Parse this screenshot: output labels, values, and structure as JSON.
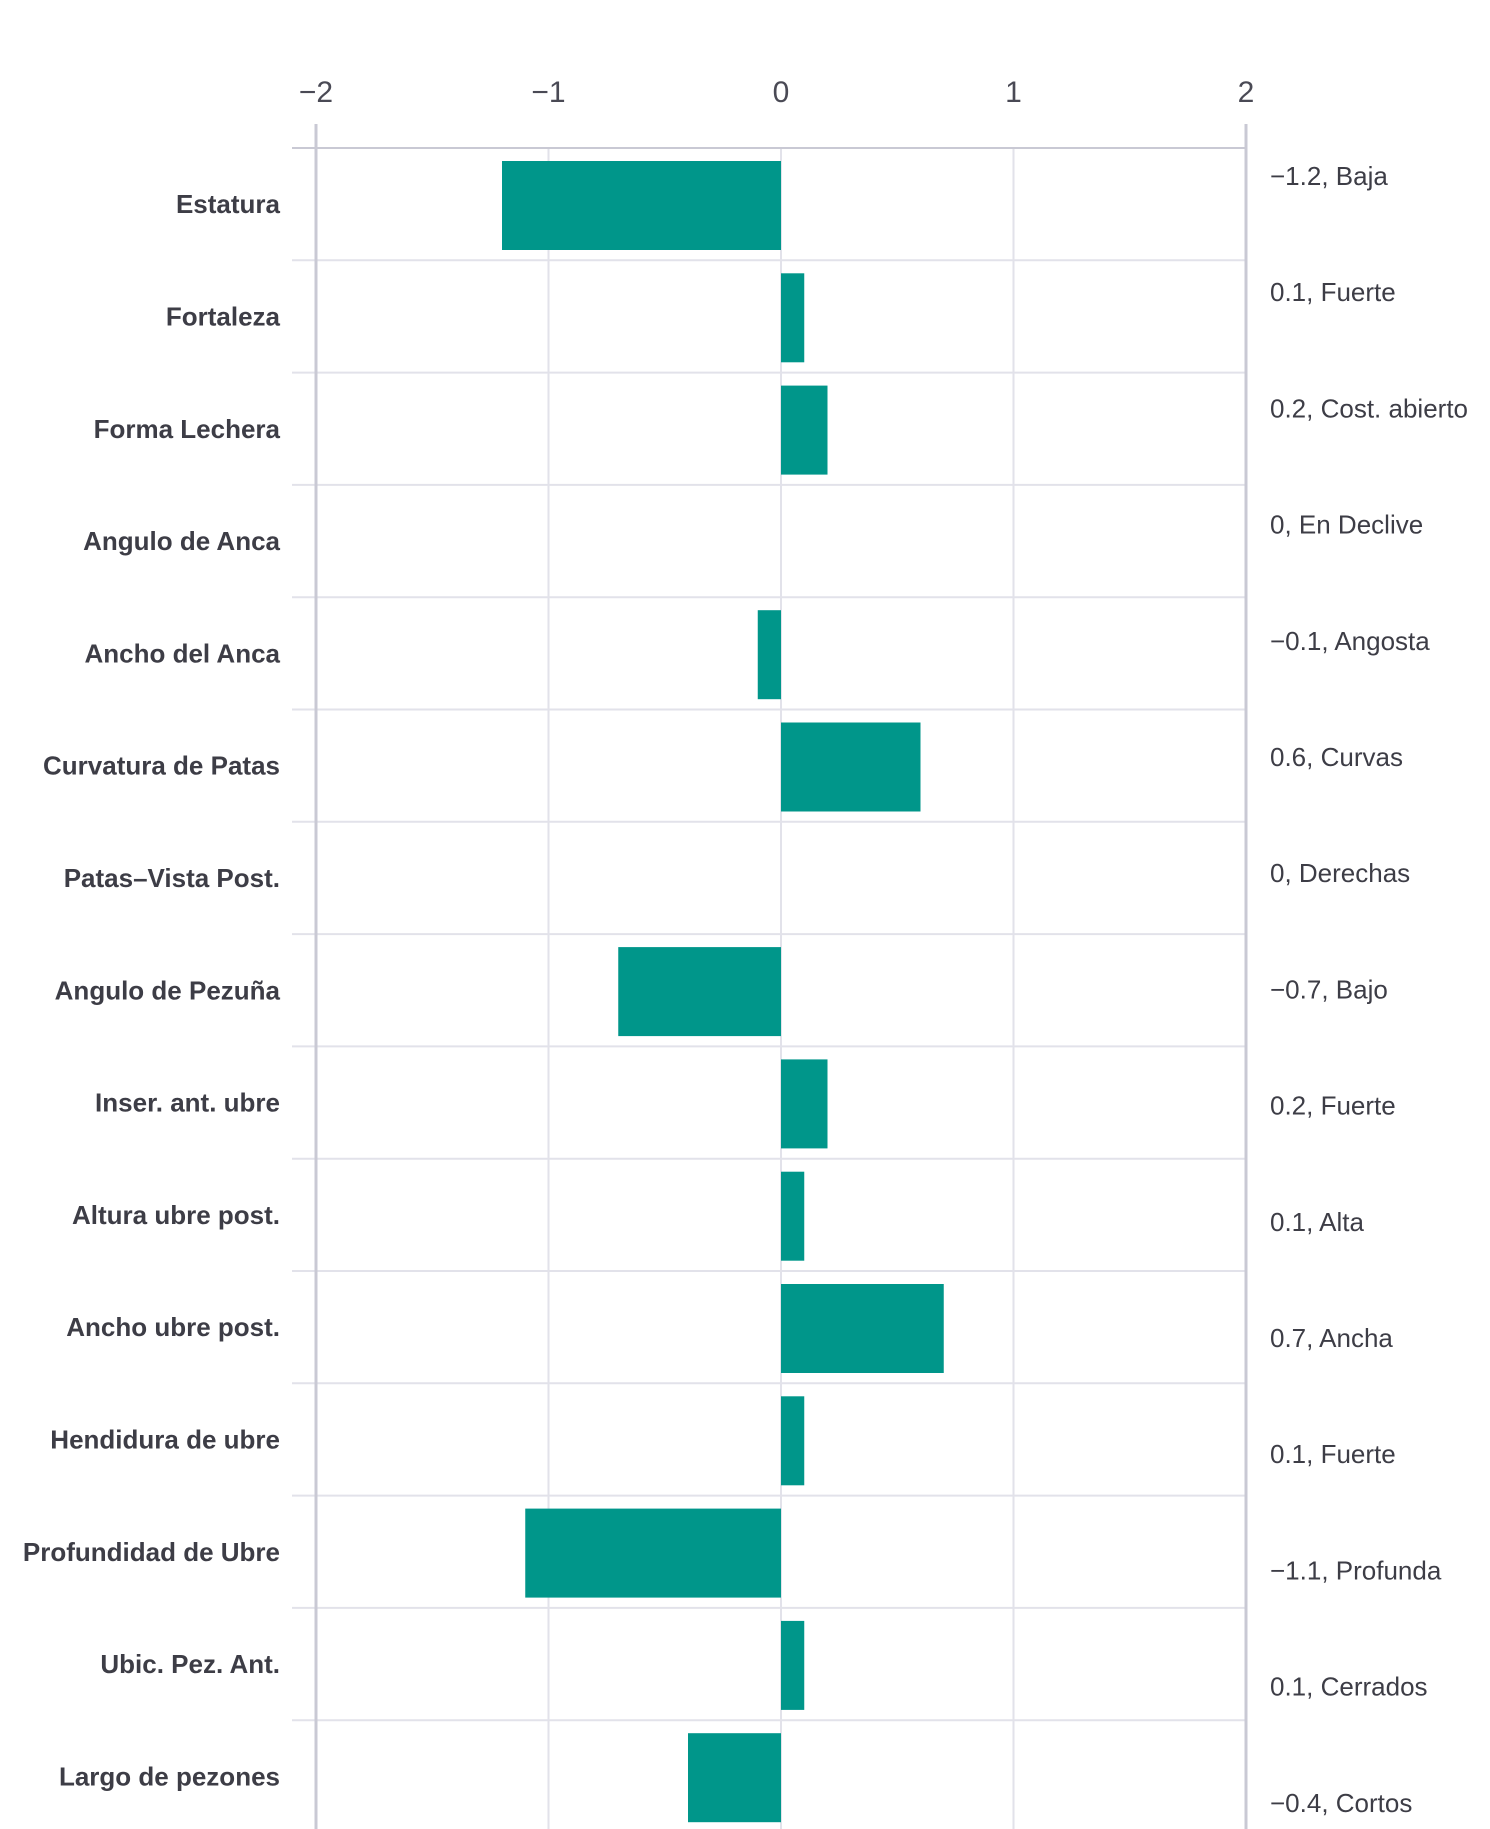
{
  "chart_data": {
    "type": "bar",
    "orientation": "horizontal",
    "xlim": [
      -2,
      2
    ],
    "x_ticks": [
      "−2",
      "−1",
      "0",
      "1",
      "2"
    ],
    "x_tick_values": [
      -2,
      -1,
      0,
      1,
      2
    ],
    "axis_position": "top",
    "grid": true,
    "bar_color": "#00968A",
    "categories": [
      "Estatura",
      "Fortaleza",
      "Forma Lechera",
      "Angulo de Anca",
      "Ancho del Anca",
      "Curvatura de Patas",
      "Patas–Vista Post.",
      "Angulo de Pezuña",
      "Inser. ant. ubre",
      "Altura ubre post.",
      "Ancho ubre post.",
      "Hendidura de ubre",
      "Profundidad de Ubre",
      "Ubic. Pez. Ant.",
      "Largo de pezones"
    ],
    "values": [
      -1.2,
      0.1,
      0.2,
      0,
      -0.1,
      0.6,
      0,
      -0.7,
      0.2,
      0.1,
      0.7,
      0.1,
      -1.1,
      0.1,
      -0.4
    ],
    "right_labels": [
      "−1.2, Baja",
      "0.1, Fuerte",
      "0.2, Cost. abierto",
      "0, En Declive",
      "−0.1, Angosta",
      "0.6, Curvas",
      "0, Derechas",
      "−0.7, Bajo",
      "0.2, Fuerte",
      "0.1, Alta",
      "0.7, Ancha",
      "0.1, Fuerte",
      "−1.1, Profunda",
      "0.1, Cerrados",
      "−0.4, Cortos"
    ]
  }
}
